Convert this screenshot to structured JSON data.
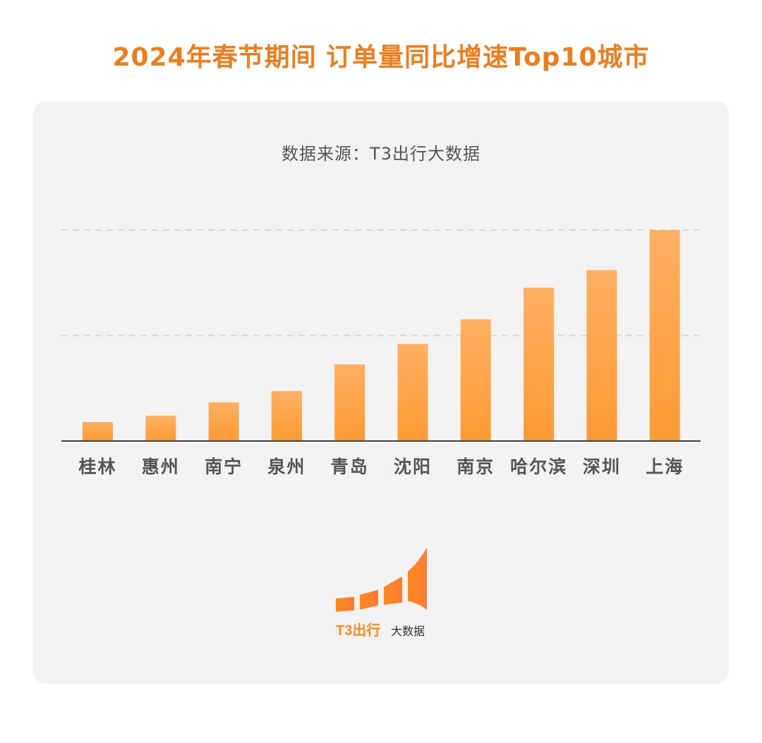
{
  "title": "2024年春节期间  订单量同比增速Top10城市",
  "source": "数据来源：T3出行大数据",
  "logo": {
    "name": "t3-bigdata-logo",
    "text_main": "T3出行",
    "text_sub": "大数据"
  },
  "colors": {
    "accent": "#f07d1b",
    "bar_top": "#ffb062",
    "bar_bottom": "#ff9a33",
    "axis": "#444444",
    "grid": "#d8d8d8",
    "label": "#555555"
  },
  "chart_data": {
    "type": "bar",
    "categories": [
      "桂林",
      "惠州",
      "南宁",
      "泉州",
      "青岛",
      "沈阳",
      "南京",
      "哈尔滨",
      "深圳",
      "上海"
    ],
    "values": [
      27,
      36,
      55,
      71,
      109,
      138,
      173,
      218,
      243,
      300
    ],
    "ylim": [
      0,
      300
    ],
    "grid": true,
    "title": "",
    "xlabel": "",
    "ylabel": ""
  }
}
